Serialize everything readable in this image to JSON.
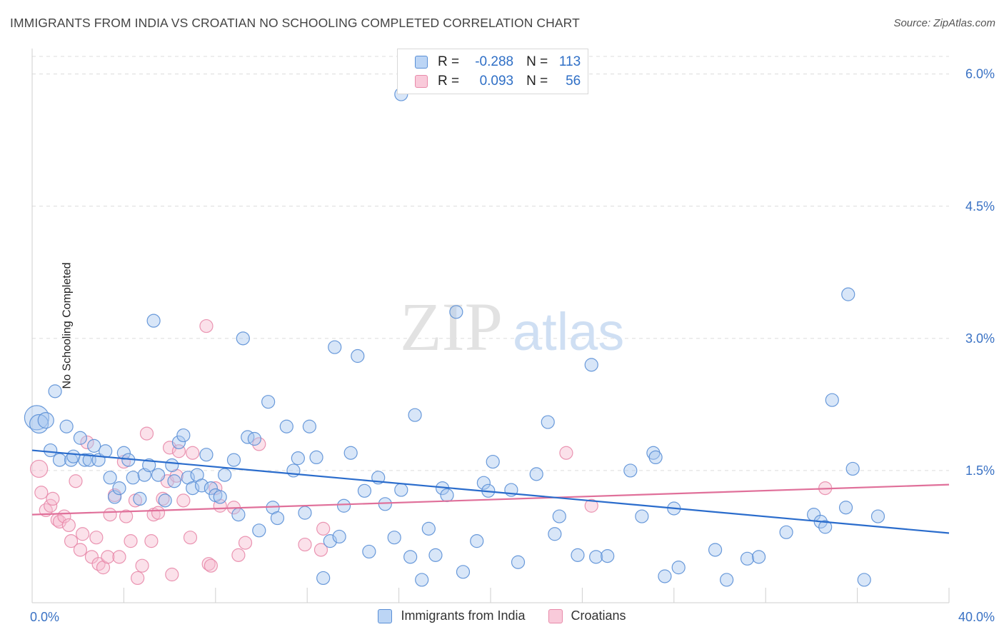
{
  "title": "IMMIGRANTS FROM INDIA VS CROATIAN NO SCHOOLING COMPLETED CORRELATION CHART",
  "source": "Source: ZipAtlas.com",
  "watermark": {
    "zip": "ZIP",
    "atlas": "atlas"
  },
  "colors": {
    "blue_fill": "#a9c8f0",
    "blue_stroke": "#5a8fd6",
    "blue_line": "#2a6ccc",
    "pink_fill": "#f7bcd0",
    "pink_stroke": "#e88aaa",
    "pink_line": "#e0709a",
    "tick_text": "#3a72c4",
    "grid": "#dcdcdc"
  },
  "legend": {
    "rows": [
      {
        "r_label": "R =",
        "r_value": "-0.288",
        "n_label": "N =",
        "n_value": "113"
      },
      {
        "r_label": "R =",
        "r_value": "0.093",
        "n_label": "N =",
        "n_value": "56"
      }
    ]
  },
  "chart_data": {
    "type": "scatter",
    "title": "IMMIGRANTS FROM INDIA VS CROATIAN NO SCHOOLING COMPLETED CORRELATION CHART",
    "xlabel": "",
    "ylabel": "No Schooling Completed",
    "xlim": [
      0,
      40
    ],
    "ylim": [
      0,
      6.2
    ],
    "x_tick_labels": [
      "0.0%",
      "40.0%"
    ],
    "y_ticks": [
      1.5,
      3.0,
      4.5,
      6.0
    ],
    "y_tick_labels": [
      "1.5%",
      "3.0%",
      "4.5%",
      "6.0%"
    ],
    "grid": true,
    "legend_position": "top-center",
    "series": [
      {
        "name": "Immigrants from India",
        "color": "#a9c8f0",
        "trend": {
          "x": [
            0,
            40
          ],
          "y": [
            1.73,
            0.79
          ]
        },
        "points": [
          [
            0.2,
            2.1
          ],
          [
            0.3,
            2.03
          ],
          [
            0.6,
            2.07
          ],
          [
            1.0,
            2.4
          ],
          [
            0.8,
            1.73
          ],
          [
            1.2,
            1.62
          ],
          [
            1.5,
            2.0
          ],
          [
            1.7,
            1.62
          ],
          [
            1.8,
            1.66
          ],
          [
            2.1,
            1.87
          ],
          [
            2.3,
            1.62
          ],
          [
            2.5,
            1.62
          ],
          [
            2.7,
            1.78
          ],
          [
            2.9,
            1.62
          ],
          [
            3.2,
            1.72
          ],
          [
            3.4,
            1.42
          ],
          [
            3.6,
            1.2
          ],
          [
            3.8,
            1.3
          ],
          [
            4.0,
            1.7
          ],
          [
            4.2,
            1.62
          ],
          [
            4.4,
            1.42
          ],
          [
            4.7,
            1.18
          ],
          [
            4.9,
            1.45
          ],
          [
            5.1,
            1.56
          ],
          [
            5.3,
            3.2
          ],
          [
            5.5,
            1.45
          ],
          [
            5.8,
            1.16
          ],
          [
            6.1,
            1.56
          ],
          [
            6.2,
            1.38
          ],
          [
            6.4,
            1.82
          ],
          [
            6.6,
            1.9
          ],
          [
            6.8,
            1.42
          ],
          [
            7.0,
            1.3
          ],
          [
            7.2,
            1.45
          ],
          [
            7.4,
            1.33
          ],
          [
            7.6,
            1.68
          ],
          [
            7.8,
            1.3
          ],
          [
            8.0,
            1.22
          ],
          [
            8.2,
            1.2
          ],
          [
            8.4,
            1.45
          ],
          [
            8.8,
            1.62
          ],
          [
            9.0,
            1.0
          ],
          [
            9.2,
            3.0
          ],
          [
            9.4,
            1.88
          ],
          [
            9.7,
            1.86
          ],
          [
            9.9,
            0.82
          ],
          [
            10.3,
            2.28
          ],
          [
            10.5,
            1.08
          ],
          [
            10.7,
            0.96
          ],
          [
            11.1,
            2.0
          ],
          [
            11.4,
            1.5
          ],
          [
            11.6,
            1.64
          ],
          [
            11.9,
            1.02
          ],
          [
            12.1,
            2.0
          ],
          [
            12.4,
            1.65
          ],
          [
            12.7,
            0.28
          ],
          [
            13.0,
            0.7
          ],
          [
            13.2,
            2.9
          ],
          [
            13.4,
            0.75
          ],
          [
            13.6,
            1.1
          ],
          [
            13.9,
            1.7
          ],
          [
            14.2,
            2.8
          ],
          [
            14.5,
            1.27
          ],
          [
            14.7,
            0.58
          ],
          [
            15.1,
            1.42
          ],
          [
            15.4,
            1.12
          ],
          [
            15.8,
            0.74
          ],
          [
            16.1,
            1.28
          ],
          [
            16.5,
            0.52
          ],
          [
            16.7,
            2.13
          ],
          [
            17.0,
            0.26
          ],
          [
            17.3,
            0.84
          ],
          [
            17.6,
            0.54
          ],
          [
            17.9,
            1.3
          ],
          [
            18.1,
            1.22
          ],
          [
            18.5,
            3.3
          ],
          [
            18.8,
            0.35
          ],
          [
            19.4,
            0.7
          ],
          [
            19.7,
            1.36
          ],
          [
            19.9,
            1.27
          ],
          [
            20.1,
            1.6
          ],
          [
            20.9,
            1.28
          ],
          [
            21.2,
            0.46
          ],
          [
            22.0,
            1.46
          ],
          [
            22.5,
            2.05
          ],
          [
            22.8,
            0.78
          ],
          [
            23.0,
            0.98
          ],
          [
            23.8,
            0.54
          ],
          [
            24.4,
            2.7
          ],
          [
            24.6,
            0.52
          ],
          [
            25.1,
            0.53
          ],
          [
            26.1,
            1.5
          ],
          [
            26.6,
            0.98
          ],
          [
            27.1,
            1.7
          ],
          [
            27.2,
            1.65
          ],
          [
            27.6,
            0.3
          ],
          [
            28.0,
            1.07
          ],
          [
            28.2,
            0.4
          ],
          [
            29.8,
            0.6
          ],
          [
            30.3,
            0.26
          ],
          [
            31.2,
            0.5
          ],
          [
            31.7,
            0.52
          ],
          [
            32.9,
            0.8
          ],
          [
            34.1,
            1.0
          ],
          [
            34.4,
            0.92
          ],
          [
            34.6,
            0.86
          ],
          [
            34.9,
            2.3
          ],
          [
            35.5,
            1.08
          ],
          [
            35.6,
            3.5
          ],
          [
            35.8,
            1.52
          ],
          [
            36.3,
            0.26
          ],
          [
            36.9,
            0.98
          ],
          [
            16.1,
            5.77
          ]
        ],
        "sizes": {
          "0": 34,
          "1": 26,
          "2": 22
        }
      },
      {
        "name": "Croatians",
        "color": "#f7bcd0",
        "trend": {
          "x": [
            0,
            40
          ],
          "y": [
            1.0,
            1.34
          ]
        },
        "points": [
          [
            0.3,
            1.52
          ],
          [
            0.4,
            1.25
          ],
          [
            0.6,
            1.05
          ],
          [
            0.8,
            1.1
          ],
          [
            0.9,
            1.18
          ],
          [
            1.1,
            0.94
          ],
          [
            1.2,
            0.92
          ],
          [
            1.4,
            0.98
          ],
          [
            1.6,
            0.88
          ],
          [
            1.7,
            0.7
          ],
          [
            1.9,
            1.38
          ],
          [
            2.1,
            0.6
          ],
          [
            2.2,
            0.78
          ],
          [
            2.4,
            1.82
          ],
          [
            2.6,
            0.52
          ],
          [
            2.8,
            0.74
          ],
          [
            2.9,
            0.44
          ],
          [
            3.1,
            0.4
          ],
          [
            3.3,
            0.52
          ],
          [
            3.4,
            1.0
          ],
          [
            3.6,
            1.22
          ],
          [
            3.8,
            0.52
          ],
          [
            4.0,
            1.6
          ],
          [
            4.1,
            0.98
          ],
          [
            4.3,
            0.7
          ],
          [
            4.5,
            1.16
          ],
          [
            4.6,
            0.28
          ],
          [
            4.8,
            0.42
          ],
          [
            5.0,
            1.92
          ],
          [
            5.2,
            0.7
          ],
          [
            5.3,
            1.0
          ],
          [
            5.5,
            1.02
          ],
          [
            5.7,
            1.18
          ],
          [
            5.9,
            1.38
          ],
          [
            6.0,
            1.76
          ],
          [
            6.1,
            0.32
          ],
          [
            6.3,
            1.44
          ],
          [
            6.4,
            1.72
          ],
          [
            6.6,
            1.16
          ],
          [
            6.9,
            0.74
          ],
          [
            7.0,
            1.7
          ],
          [
            7.6,
            3.14
          ],
          [
            7.7,
            0.44
          ],
          [
            7.8,
            0.42
          ],
          [
            8.0,
            1.3
          ],
          [
            8.2,
            1.1
          ],
          [
            8.8,
            1.08
          ],
          [
            9.0,
            0.54
          ],
          [
            9.3,
            0.68
          ],
          [
            9.9,
            1.8
          ],
          [
            11.9,
            0.66
          ],
          [
            12.6,
            0.6
          ],
          [
            12.7,
            0.84
          ],
          [
            23.3,
            1.7
          ],
          [
            24.4,
            1.1
          ],
          [
            34.6,
            1.3
          ]
        ],
        "sizes": {
          "0": 24
        }
      }
    ]
  },
  "axes": {
    "y_title": "No Schooling Completed"
  }
}
